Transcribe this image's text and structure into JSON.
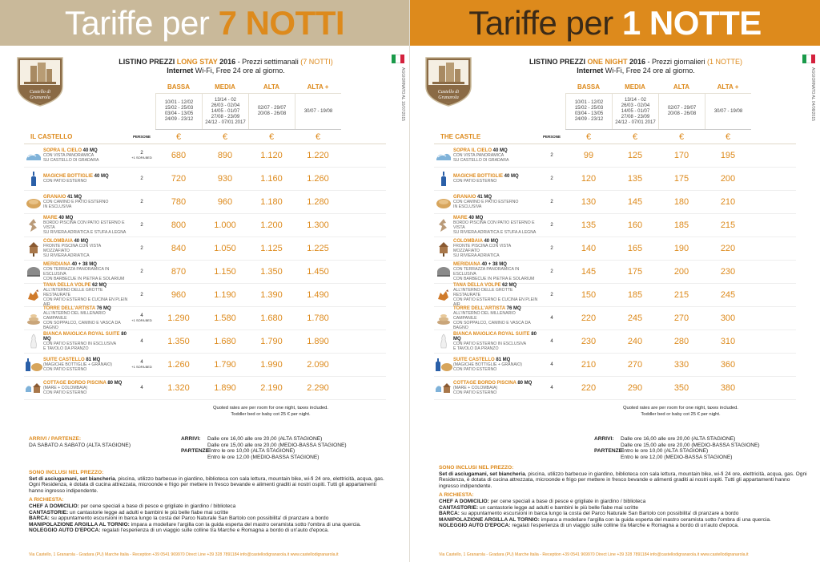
{
  "left": {
    "banner_light": "Tariffe per ",
    "banner_strong": "7 NOTTI",
    "logo_text_1": "Castello di",
    "logo_text_2": "Granarola",
    "updated": "AGGIORNATO AL 10/07/2015",
    "title_a": "LISTINO PREZZI ",
    "title_accent": "LONG STAY",
    "title_b": " 2016",
    "title_c": " - Prezzi settimanali ",
    "title_accent2": "(7 NOTTI)",
    "subtitle_bold": "Internet",
    "subtitle_rest": " Wi-Fi, Free 24 ore al giorno.",
    "seasons": [
      "BASSA",
      "MEDIA",
      "ALTA",
      "ALTA +"
    ],
    "dates": [
      "10/01 - 12/02\n15/02 - 25/03\n03/04 - 13/05\n24/09 - 23/12",
      "13/14 - 02\n26/03 - 02/04\n14/05 - 01/07\n27/08 - 23/09\n24/12 - 07/01 2017",
      "02/07 - 29/07\n20/08 - 26/08",
      "30/07 - 19/08"
    ],
    "house": "IL CASTELLO",
    "persone": "PERSONE",
    "euro": "€",
    "rooms": [
      {
        "name": "SOPRA IL CIELO",
        "size": " 40 MQ",
        "desc": "CON VISTA PANORAMICA\nSU CASTELLO DI GRADARA",
        "people": "2",
        "extra": "+1 SOFA BED",
        "prices": [
          "680",
          "890",
          "1.120",
          "1.220"
        ]
      },
      {
        "name": "MAGICHE BOTTIGLIE",
        "size": " 40 MQ",
        "desc": "CON PATIO ESTERNO",
        "people": "2",
        "extra": "",
        "prices": [
          "720",
          "930",
          "1.160",
          "1.260"
        ]
      },
      {
        "name": "GRANAIO",
        "size": " 41 MQ",
        "desc": "CON CAMINO E PATIO ESTERNO\nIN ESCLUSIVA",
        "people": "2",
        "extra": "",
        "prices": [
          "780",
          "960",
          "1.180",
          "1.280"
        ]
      },
      {
        "name": "MARE",
        "size": " 40 MQ",
        "desc": "BORDO PISCINA CON PATIO ESTERNO E VISTA\nSU RIVIERA ADRIATICA E STUFA A LEGNA",
        "people": "2",
        "extra": "",
        "prices": [
          "800",
          "1.000",
          "1.200",
          "1.300"
        ]
      },
      {
        "name": "COLOMBAIA",
        "size": " 40 MQ",
        "desc": "FRONTE PISCINA CON VISTA MOZZAFIATO\nSU RIVIERA ADRIATICA",
        "people": "2",
        "extra": "",
        "prices": [
          "840",
          "1.050",
          "1.125",
          "1.225"
        ]
      },
      {
        "name": "MERIDIANA",
        "size": " 40 + 38 MQ",
        "desc": "CON TERRAZZA PANORAMICA IN ESCLUSIVA\nCON BARBECUE IN PIETRA E SOLARIUM",
        "people": "2",
        "extra": "",
        "prices": [
          "870",
          "1.150",
          "1.350",
          "1.450"
        ]
      },
      {
        "name": "TANA DELLA VOLPE",
        "size": " 62 MQ",
        "desc": "ALL'INTERNO DELLE GROTTE RESTAURATE\nCON PATIO ESTERNO E CUCINA EN PLEIN AIR",
        "people": "2",
        "extra": "",
        "prices": [
          "960",
          "1.190",
          "1.390",
          "1.490"
        ]
      },
      {
        "name": "TORRE DELL'ARTISTA",
        "size": " 76 MQ",
        "desc": "ALL'INTERNO DEL MILLENARIO CAMPANILE\nCON SOPPALCO, CAMINO E VASCA DA BAGNO",
        "people": "4",
        "extra": "+1 SOFA BED",
        "prices": [
          "1.290",
          "1.580",
          "1.680",
          "1.780"
        ]
      },
      {
        "name": "BIANCA MAIOLICA ROYAL SUITE",
        "size": " 80 MQ",
        "desc": "CON PATIO ESTERNO IN ESCLUSIVA\nE TAVOLO DA PRANZO",
        "people": "4",
        "extra": "",
        "prices": [
          "1.350",
          "1.680",
          "1.790",
          "1.890"
        ]
      },
      {
        "name": "SUITE CASTELLO",
        "size": " 81 MQ",
        "desc": "(MAGICHE BOTTIGLIE + GRANAIO)\nCON PATIO ESTERNO",
        "people": "4",
        "extra": "+1 SOFA BED",
        "prices": [
          "1.260",
          "1.790",
          "1.990",
          "2.090"
        ]
      },
      {
        "name": "COTTAGE BORDO PISCINA",
        "size": " 80 MQ",
        "desc": "(MARE + COLOMBAIA)\nCON PATIO ESTERNO",
        "people": "4",
        "extra": "",
        "prices": [
          "1.320",
          "1.890",
          "2.190",
          "2.290"
        ]
      }
    ],
    "quoted_1": "Quoted rates are per room for one night, taxes included.",
    "quoted_2": "Toddler bed or baby cot 25 € per night.",
    "arrivals_label": "ARRIVI / PARTENZE:",
    "arrivals_text": "DA SABATO A SABATO (ALTA STAGIONE)",
    "footer": "Via Castello, 1 Granarola - Gradara (PU) Marche Italia - Reception +39 0541 969970 Direct Line +39 328 7891184 info@castellodigranarola.it  www.castellodigranarola.it"
  },
  "right": {
    "banner_light": "Tariffe per ",
    "banner_strong": "1 NOTTE",
    "logo_text_1": "Castello di",
    "logo_text_2": "Granarola",
    "updated": "AGGIORNATO AL 04/08/2015",
    "title_a": "LISTINO PREZZI ",
    "title_accent": "ONE NIGHT",
    "title_b": " 2016",
    "title_c": " - Prezzi giornalieri ",
    "title_accent2": "(1 NOTTE)",
    "subtitle_bold": "Internet",
    "subtitle_rest": " Wi-Fi, Free 24 ore al giorno.",
    "seasons": [
      "BASSA",
      "MEDIA",
      "ALTA",
      "ALTA +"
    ],
    "dates": [
      "10/01 - 12/02\n15/02 - 25/03\n03/04 - 13/05\n24/09 - 23/12",
      "13/14 - 02\n26/03 - 02/04\n14/05 - 01/07\n27/08 - 23/09\n24/12 - 07/01 2017",
      "02/07 - 29/07\n20/08 - 26/08",
      "30/07 - 19/08"
    ],
    "house": "THE CASTLE",
    "persone": "PERSONE",
    "euro": "€",
    "rooms": [
      {
        "name": "SOPRA IL CIELO",
        "size": " 40 MQ",
        "desc": "CON VISTA PANORAMICA\nSU CASTELLO DI GRADARA",
        "people": "2",
        "extra": "",
        "prices": [
          "99",
          "125",
          "170",
          "195"
        ]
      },
      {
        "name": "MAGICHE BOTTIGLIE",
        "size": " 40 MQ",
        "desc": "CON PATIO ESTERNO",
        "people": "2",
        "extra": "",
        "prices": [
          "120",
          "135",
          "175",
          "200"
        ]
      },
      {
        "name": "GRANAIO",
        "size": " 41 MQ",
        "desc": "CON CAMINO E PATIO ESTERNO\nIN ESCLUSIVA",
        "people": "2",
        "extra": "",
        "prices": [
          "130",
          "145",
          "180",
          "210"
        ]
      },
      {
        "name": "MARE",
        "size": " 40 MQ",
        "desc": "BORDO PISCINA CON PATIO ESTERNO E VISTA\nSU RIVIERA ADRIATICA E STUFA A LEGNA",
        "people": "2",
        "extra": "",
        "prices": [
          "135",
          "160",
          "185",
          "215"
        ]
      },
      {
        "name": "COLOMBAIA",
        "size": " 40 MQ",
        "desc": "FRONTE PISCINA CON VISTA MOZZAFIATO\nSU RIVIERA ADRIATICA",
        "people": "2",
        "extra": "",
        "prices": [
          "140",
          "165",
          "190",
          "220"
        ]
      },
      {
        "name": "MERIDIANA",
        "size": " 40 + 38 MQ",
        "desc": "CON TERRAZZA PANORAMICA IN ESCLUSIVA\nCON BARBECUE IN PIETRA E SOLARIUM",
        "people": "2",
        "extra": "",
        "prices": [
          "145",
          "175",
          "200",
          "230"
        ]
      },
      {
        "name": "TANA DELLA VOLPE",
        "size": " 62 MQ",
        "desc": "ALL'INTERNO DELLE GROTTE RESTAURATE\nCON PATIO ESTERNO E CUCINA EN PLEIN AIR",
        "people": "2",
        "extra": "",
        "prices": [
          "150",
          "185",
          "215",
          "245"
        ]
      },
      {
        "name": "TORRE DELL'ARTISTA",
        "size": " 76 MQ",
        "desc": "ALL'INTERNO DEL MILLENARIO CAMPANILE\nCON SOPPALCO, CAMINO E VASCA DA BAGNO",
        "people": "4",
        "extra": "",
        "prices": [
          "220",
          "245",
          "270",
          "300"
        ]
      },
      {
        "name": "BIANCA MAIOLICA ROYAL SUITE",
        "size": " 80 MQ",
        "desc": "CON PATIO ESTERNO IN ESCLUSIVA\nE TAVOLO DA PRANZO",
        "people": "4",
        "extra": "",
        "prices": [
          "230",
          "240",
          "280",
          "310"
        ]
      },
      {
        "name": "SUITE CASTELLO",
        "size": " 81 MQ",
        "desc": "(MAGICHE BOTTIGLIE + GRANAIO)\nCON PATIO ESTERNO",
        "people": "4",
        "extra": "",
        "prices": [
          "210",
          "270",
          "330",
          "360"
        ]
      },
      {
        "name": "COTTAGE BORDO PISCINA",
        "size": " 80 MQ",
        "desc": "(MARE + COLOMBAIA)\nCON PATIO ESTERNO",
        "people": "4",
        "extra": "",
        "prices": [
          "220",
          "290",
          "350",
          "380"
        ]
      }
    ],
    "quoted_1": "Quoted rates are per room for one night, taxes included.",
    "quoted_2": "Toddler bed or baby cot 25 € per night.",
    "footer": "Via Castello, 1 Granarola - Gradara (PU) Marche Italia - Reception +39 0541 969970 Direct Line +39 328 7891184 info@castellodigranarola.it  www.castellodigranarola.it"
  },
  "common": {
    "arrivi_label": "ARRIVI:",
    "arrivi_1": "Dalle ore 16,00 alle ore 20,00 (ALTA STAGIONE)",
    "arrivi_2": "Dalle ore 15,00 alle ore 20,00 (MEDIO-BASSA STAGIONE)",
    "partenze_label": "PARTENZE:",
    "partenze_1": "Entro le ore 10,00 (ALTA STAGIONE)",
    "partenze_2": "Entro le ore 12,00 (MEDIO-BASSA STAGIONE)",
    "inclusi_label": "SONO INCLUSI NEL PREZZO:",
    "inclusi_bold": "Set di asciugamani, set biancheria",
    "inclusi_text": ", piscina, utilizzo barbecue in giardino, biblioteca con sala lettura, mountain bike, wi-fi 24 ore, elettricità, acqua, gas. Ogni Residenza, è dotata di cucina attrezzata, microonde e frigo per mettere in fresco bevande e alimenti graditi ai nostri ospiti. Tutti gli appartamenti hanno ingresso indipendente.",
    "richiesta_label": "A RICHIESTA:",
    "req": [
      {
        "k": "CHEF A DOMICILIO:",
        "v": " per cene speciali a base di pesce e grigliate in giardino / biblioteca"
      },
      {
        "k": "CANTASTORIE:",
        "v": " un cantastorie legge ad adulti e bambini le più belle fiabe mai scritte"
      },
      {
        "k": "BARCA:",
        "v": " su appuntamento escursioni in barca lungo la costa del Parco Naturale San Bartolo con possibilita' di pranzare a bordo"
      },
      {
        "k": "MANIPOLAZIONE ARGILLA AL TORNIO:",
        "v": " impara a modellare l'argilla con la guida esperta del mastro ceramista sotto l'ombra di una quercia."
      },
      {
        "k": "NOLEGGIO AUTO D'EPOCA:",
        "v": " regalati l'esperienza di un viaggio sulle colline tra Marche e Romagna a bordo di un'auto d'epoca."
      }
    ]
  },
  "colors": {
    "accent": "#dd8a1c",
    "banner_left": "#c9b99a",
    "banner_right": "#dd8a1c"
  }
}
